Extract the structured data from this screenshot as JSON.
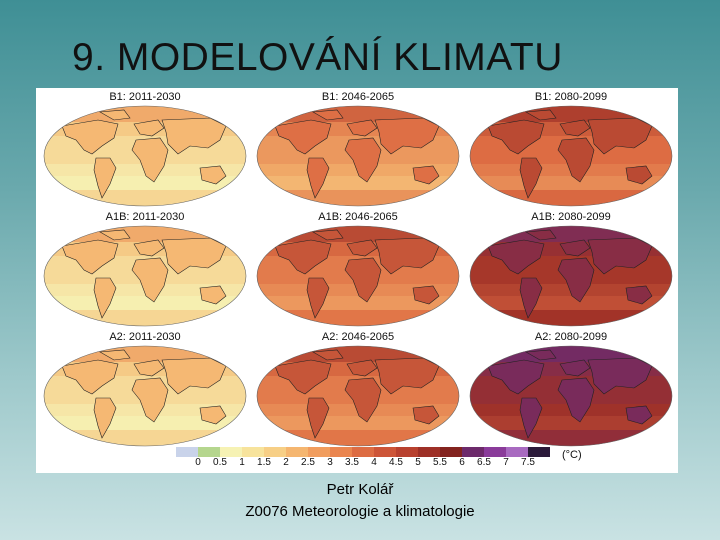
{
  "slide": {
    "title": "9. MODELOVÁNÍ KLIMATU",
    "author": "Petr Kolář",
    "course": "Z0076 Meteorologie a klimatologie"
  },
  "figure": {
    "panels": [
      {
        "label": "B1: 2011-2030",
        "level": 0.1
      },
      {
        "label": "B1: 2046-2065",
        "level": 0.35
      },
      {
        "label": "B1: 2080-2099",
        "level": 0.5
      },
      {
        "label": "A1B: 2011-2030",
        "level": 0.1
      },
      {
        "label": "A1B: 2046-2065",
        "level": 0.45
      },
      {
        "label": "A1B: 2080-2099",
        "level": 0.72
      },
      {
        "label": "A2: 2011-2030",
        "level": 0.1
      },
      {
        "label": "A2: 2046-2065",
        "level": 0.45
      },
      {
        "label": "A2: 2080-2099",
        "level": 0.8
      }
    ],
    "colorbar": {
      "unit": "(°C)",
      "ticks": [
        "0",
        "0.5",
        "1",
        "1.5",
        "2",
        "2.5",
        "3",
        "3.5",
        "4",
        "4.5",
        "5",
        "5.5",
        "6",
        "6.5",
        "7",
        "7.5"
      ],
      "colors": [
        "#c9d3ea",
        "#b5d68e",
        "#f6f2b4",
        "#f7e39c",
        "#f7cf86",
        "#f5b670",
        "#f19d5e",
        "#ea854f",
        "#dd6c43",
        "#cd5538",
        "#b8412f",
        "#9e3027",
        "#83231f",
        "#6d2a6b",
        "#8a3b9a",
        "#a86ac0",
        "#2b1a3a"
      ]
    }
  }
}
